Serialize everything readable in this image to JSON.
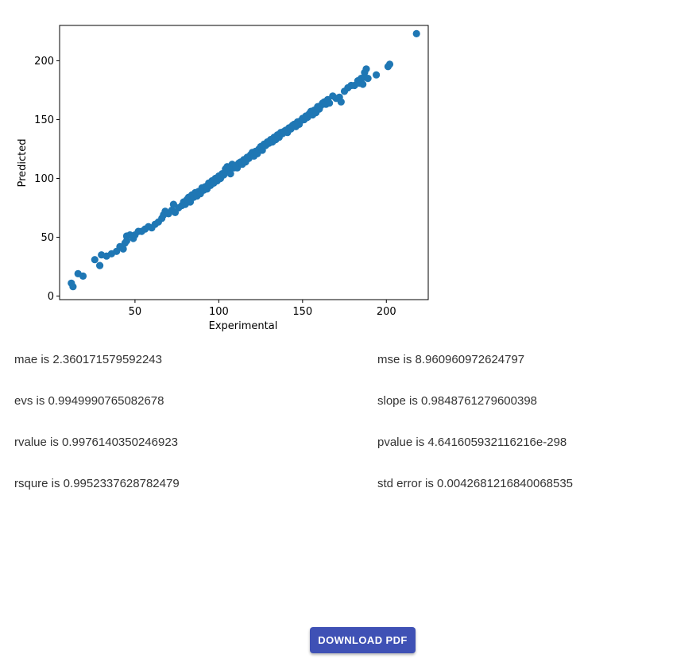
{
  "chart_data": {
    "type": "scatter",
    "xlabel": "Experimental",
    "ylabel": "Predicted",
    "xlim": [
      5,
      225
    ],
    "ylim": [
      -3,
      230
    ],
    "xticks": [
      50,
      100,
      150,
      200
    ],
    "yticks": [
      0,
      50,
      100,
      150,
      200
    ],
    "color": "#1f77b4",
    "points": [
      [
        12,
        11
      ],
      [
        13,
        8
      ],
      [
        16,
        19
      ],
      [
        19,
        17
      ],
      [
        26,
        31
      ],
      [
        29,
        26
      ],
      [
        30,
        35
      ],
      [
        33,
        34
      ],
      [
        36,
        36
      ],
      [
        39,
        38
      ],
      [
        41,
        42
      ],
      [
        43,
        40
      ],
      [
        44,
        45
      ],
      [
        45,
        47
      ],
      [
        45,
        51
      ],
      [
        47,
        52
      ],
      [
        49,
        49
      ],
      [
        50,
        52
      ],
      [
        52,
        55
      ],
      [
        54,
        55
      ],
      [
        56,
        57
      ],
      [
        58,
        59
      ],
      [
        60,
        58
      ],
      [
        62,
        61
      ],
      [
        64,
        63
      ],
      [
        66,
        66
      ],
      [
        67,
        69
      ],
      [
        68,
        72
      ],
      [
        70,
        70
      ],
      [
        72,
        73
      ],
      [
        73,
        78
      ],
      [
        74,
        71
      ],
      [
        76,
        75
      ],
      [
        78,
        77
      ],
      [
        79,
        80
      ],
      [
        80,
        78
      ],
      [
        81,
        82
      ],
      [
        82,
        84
      ],
      [
        83,
        80
      ],
      [
        84,
        86
      ],
      [
        85,
        84
      ],
      [
        86,
        88
      ],
      [
        87,
        85
      ],
      [
        88,
        89
      ],
      [
        89,
        87
      ],
      [
        90,
        92
      ],
      [
        91,
        90
      ],
      [
        92,
        93
      ],
      [
        93,
        91
      ],
      [
        94,
        96
      ],
      [
        95,
        94
      ],
      [
        96,
        98
      ],
      [
        97,
        96
      ],
      [
        98,
        100
      ],
      [
        99,
        98
      ],
      [
        100,
        102
      ],
      [
        101,
        100
      ],
      [
        102,
        104
      ],
      [
        103,
        103
      ],
      [
        104,
        106
      ],
      [
        104,
        108
      ],
      [
        105,
        110
      ],
      [
        106,
        107
      ],
      [
        107,
        104
      ],
      [
        108,
        112
      ],
      [
        109,
        109
      ],
      [
        110,
        111
      ],
      [
        111,
        109
      ],
      [
        112,
        113
      ],
      [
        113,
        114
      ],
      [
        114,
        112
      ],
      [
        115,
        116
      ],
      [
        116,
        114
      ],
      [
        117,
        118
      ],
      [
        118,
        117
      ],
      [
        119,
        120
      ],
      [
        120,
        122
      ],
      [
        121,
        119
      ],
      [
        122,
        123
      ],
      [
        123,
        121
      ],
      [
        124,
        125
      ],
      [
        125,
        127
      ],
      [
        126,
        124
      ],
      [
        127,
        129
      ],
      [
        128,
        128
      ],
      [
        129,
        131
      ],
      [
        130,
        130
      ],
      [
        131,
        133
      ],
      [
        132,
        131
      ],
      [
        133,
        135
      ],
      [
        134,
        133
      ],
      [
        135,
        137
      ],
      [
        136,
        135
      ],
      [
        137,
        139
      ],
      [
        138,
        138
      ],
      [
        139,
        140
      ],
      [
        140,
        141
      ],
      [
        141,
        139
      ],
      [
        142,
        143
      ],
      [
        143,
        142
      ],
      [
        144,
        145
      ],
      [
        145,
        146
      ],
      [
        146,
        144
      ],
      [
        147,
        148
      ],
      [
        148,
        146
      ],
      [
        149,
        149
      ],
      [
        150,
        151
      ],
      [
        151,
        150
      ],
      [
        152,
        153
      ],
      [
        153,
        152
      ],
      [
        154,
        155
      ],
      [
        155,
        157
      ],
      [
        156,
        154
      ],
      [
        157,
        158
      ],
      [
        158,
        156
      ],
      [
        159,
        161
      ],
      [
        160,
        159
      ],
      [
        161,
        162
      ],
      [
        162,
        164
      ],
      [
        163,
        165
      ],
      [
        164,
        163
      ],
      [
        165,
        167
      ],
      [
        166,
        164
      ],
      [
        168,
        170
      ],
      [
        170,
        168
      ],
      [
        172,
        169
      ],
      [
        173,
        165
      ],
      [
        175,
        174
      ],
      [
        177,
        177
      ],
      [
        179,
        179
      ],
      [
        181,
        179
      ],
      [
        183,
        183
      ],
      [
        184,
        181
      ],
      [
        185,
        185
      ],
      [
        186,
        180
      ],
      [
        187,
        186
      ],
      [
        187,
        190
      ],
      [
        188,
        193
      ],
      [
        189,
        185
      ],
      [
        194,
        188
      ],
      [
        201,
        195
      ],
      [
        202,
        197
      ],
      [
        218,
        223
      ]
    ]
  },
  "stats": [
    {
      "text": "mae is 2.360171579592243"
    },
    {
      "text": "mse is 8.960960972624797"
    },
    {
      "text": "evs is 0.9949990765082678"
    },
    {
      "text": "slope is 0.9848761279600398"
    },
    {
      "text": "rvalue is 0.9976140350246923"
    },
    {
      "text": "pvalue is 4.641605932116216e-298"
    },
    {
      "text": "rsqure is 0.9952337628782479"
    },
    {
      "text": "std error is 0.0042681216840068535"
    }
  ],
  "download_button": {
    "label": "DOWNLOAD PDF"
  }
}
